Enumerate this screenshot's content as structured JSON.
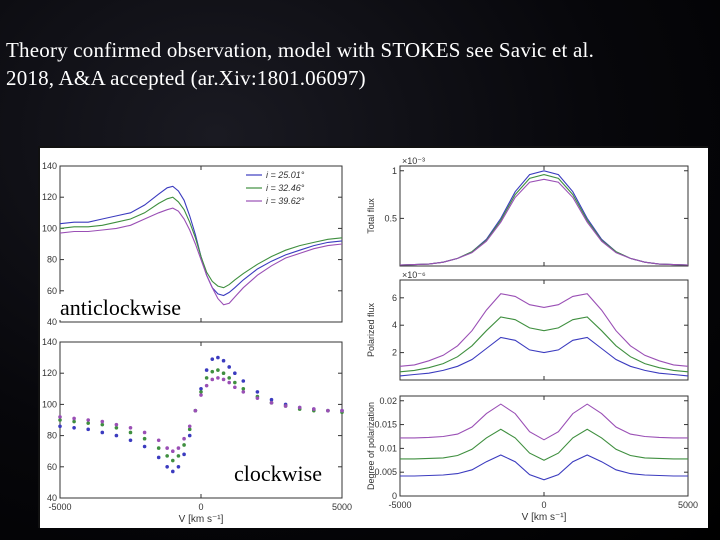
{
  "slide": {
    "title_line1": "Theory confirmed  observation, model with STOKES see Savic et al.",
    "title_line2": "2018, A&A accepted (ar.Xiv:1801.06097)"
  },
  "overlays": {
    "anticlockwise": "anticlockwise",
    "clockwise": "clockwise"
  },
  "colors": {
    "series_1": "#3b3bbf",
    "series_2": "#3f8f3f",
    "series_3": "#9a4fb5",
    "axis": "#333333"
  },
  "chart_data": [
    {
      "id": "angle-anticlockwise",
      "type": "line",
      "x": [
        -5000,
        -4500,
        -4000,
        -3500,
        -3000,
        -2500,
        -2000,
        -1500,
        -1200,
        -1000,
        -800,
        -600,
        -400,
        -200,
        0,
        200,
        400,
        600,
        800,
        1000,
        1200,
        1500,
        2000,
        2500,
        3000,
        3500,
        4000,
        4500,
        5000
      ],
      "series": [
        {
          "name": "i = 25.01°",
          "values": [
            103,
            104,
            104,
            106,
            108,
            110,
            115,
            122,
            126,
            127,
            124,
            118,
            108,
            96,
            82,
            70,
            62,
            58,
            57,
            59,
            62,
            67,
            74,
            79,
            83,
            86,
            89,
            91,
            92
          ]
        },
        {
          "name": "i = 32.46°",
          "values": [
            100,
            101,
            101,
            102,
            104,
            106,
            110,
            116,
            119,
            120,
            117,
            112,
            104,
            94,
            82,
            72,
            66,
            63,
            62,
            64,
            67,
            71,
            77,
            82,
            86,
            89,
            91,
            93,
            94
          ]
        },
        {
          "name": "i = 39.62°",
          "values": [
            97,
            98,
            98,
            99,
            100,
            102,
            106,
            110,
            112,
            113,
            111,
            106,
            99,
            90,
            80,
            70,
            62,
            55,
            51,
            52,
            56,
            62,
            70,
            76,
            81,
            84,
            87,
            89,
            90
          ]
        }
      ],
      "xlim": [
        -5000,
        5000
      ],
      "ylim": [
        40,
        140
      ],
      "yticks": [
        "140",
        "120",
        "100",
        "80",
        "60",
        "40"
      ],
      "legend_position": "top-right"
    },
    {
      "id": "angle-clockwise",
      "type": "scatter",
      "x": [
        -5000,
        -4500,
        -4000,
        -3500,
        -3000,
        -2500,
        -2000,
        -1500,
        -1200,
        -1000,
        -800,
        -600,
        -400,
        -200,
        0,
        200,
        400,
        600,
        800,
        1000,
        1200,
        1500,
        2000,
        2500,
        3000,
        3500,
        4000,
        4500,
        5000
      ],
      "series": [
        {
          "name": "i = 25.01°",
          "values": [
            86,
            85,
            84,
            82,
            80,
            77,
            73,
            66,
            60,
            57,
            60,
            68,
            80,
            96,
            110,
            122,
            129,
            130,
            128,
            124,
            120,
            115,
            108,
            103,
            100,
            98,
            97,
            96,
            96
          ]
        },
        {
          "name": "i = 32.46°",
          "values": [
            90,
            89,
            88,
            87,
            85,
            82,
            78,
            72,
            67,
            64,
            67,
            74,
            84,
            96,
            108,
            117,
            121,
            122,
            120,
            117,
            114,
            110,
            105,
            101,
            99,
            97,
            96,
            96,
            95
          ]
        },
        {
          "name": "i = 39.62°",
          "values": [
            92,
            91,
            90,
            89,
            87,
            85,
            82,
            77,
            72,
            70,
            72,
            78,
            86,
            96,
            106,
            112,
            116,
            117,
            116,
            114,
            111,
            108,
            104,
            101,
            99,
            98,
            97,
            96,
            96
          ]
        }
      ],
      "xlim": [
        -5000,
        5000
      ],
      "ylim": [
        40,
        140
      ],
      "xticks": [
        "-5000",
        "0",
        "5000"
      ],
      "yticks": [
        "140",
        "120",
        "100",
        "80",
        "60",
        "40"
      ],
      "xlabel": "V [km s⁻¹]"
    },
    {
      "id": "total-flux",
      "type": "line",
      "x": [
        -5000,
        -4500,
        -4000,
        -3500,
        -3000,
        -2500,
        -2000,
        -1500,
        -1000,
        -500,
        0,
        500,
        1000,
        1500,
        2000,
        2500,
        3000,
        3500,
        4000,
        4500,
        5000
      ],
      "series": [
        {
          "name": "i = 25.01°",
          "values": [
            0.01,
            0.015,
            0.02,
            0.04,
            0.08,
            0.15,
            0.28,
            0.5,
            0.78,
            0.96,
            1.0,
            0.96,
            0.78,
            0.5,
            0.28,
            0.15,
            0.08,
            0.04,
            0.02,
            0.015,
            0.01
          ]
        },
        {
          "name": "i = 32.46°",
          "values": [
            0.01,
            0.015,
            0.02,
            0.04,
            0.08,
            0.15,
            0.27,
            0.48,
            0.75,
            0.92,
            0.96,
            0.92,
            0.75,
            0.48,
            0.27,
            0.15,
            0.08,
            0.04,
            0.02,
            0.015,
            0.01
          ]
        },
        {
          "name": "i = 39.62°",
          "values": [
            0.01,
            0.015,
            0.02,
            0.04,
            0.08,
            0.14,
            0.26,
            0.46,
            0.72,
            0.88,
            0.91,
            0.88,
            0.72,
            0.46,
            0.26,
            0.14,
            0.08,
            0.04,
            0.02,
            0.015,
            0.01
          ]
        }
      ],
      "xlim": [
        -5000,
        5000
      ],
      "ylim": [
        0,
        1.05
      ],
      "yticks": [
        "1",
        "0.5"
      ],
      "ylabel": "Total flux",
      "scale_note": "×10⁻³"
    },
    {
      "id": "polarized-flux",
      "type": "line",
      "x": [
        -5000,
        -4500,
        -4000,
        -3500,
        -3000,
        -2500,
        -2000,
        -1500,
        -1000,
        -500,
        0,
        500,
        1000,
        1500,
        2000,
        2500,
        3000,
        3500,
        4000,
        4500,
        5000
      ],
      "series": [
        {
          "name": "i = 25.01°",
          "values": [
            0.3,
            0.4,
            0.5,
            0.7,
            1.0,
            1.5,
            2.3,
            3.1,
            2.9,
            2.2,
            2.0,
            2.2,
            2.9,
            3.1,
            2.3,
            1.5,
            1.0,
            0.7,
            0.5,
            0.4,
            0.3
          ]
        },
        {
          "name": "i = 32.46°",
          "values": [
            0.6,
            0.7,
            0.9,
            1.2,
            1.7,
            2.5,
            3.6,
            4.6,
            4.4,
            3.8,
            3.6,
            3.8,
            4.4,
            4.6,
            3.6,
            2.5,
            1.7,
            1.2,
            0.9,
            0.7,
            0.6
          ]
        },
        {
          "name": "i = 39.62°",
          "values": [
            1.0,
            1.1,
            1.4,
            1.8,
            2.5,
            3.6,
            5.1,
            6.3,
            6.1,
            5.5,
            5.3,
            5.5,
            6.1,
            6.3,
            5.1,
            3.6,
            2.5,
            1.8,
            1.4,
            1.1,
            1.0
          ]
        }
      ],
      "xlim": [
        -5000,
        5000
      ],
      "ylim": [
        0,
        7.3
      ],
      "yticks": [
        "6",
        "4",
        "2"
      ],
      "ylabel": "Polarized flux",
      "scale_note": "×10⁻⁶"
    },
    {
      "id": "degree-polarization",
      "type": "line",
      "x": [
        -5000,
        -4500,
        -4000,
        -3500,
        -3000,
        -2500,
        -2000,
        -1500,
        -1000,
        -500,
        0,
        500,
        1000,
        1500,
        2000,
        2500,
        3000,
        3500,
        4000,
        4500,
        5000
      ],
      "series": [
        {
          "name": "i = 25.01°",
          "values": [
            0.0042,
            0.0042,
            0.0043,
            0.0044,
            0.0047,
            0.0055,
            0.0072,
            0.0086,
            0.0072,
            0.0045,
            0.0034,
            0.0045,
            0.0072,
            0.0086,
            0.0072,
            0.0055,
            0.0047,
            0.0044,
            0.0043,
            0.0042,
            0.0042
          ]
        },
        {
          "name": "i = 32.46°",
          "values": [
            0.0078,
            0.0078,
            0.0079,
            0.008,
            0.0085,
            0.0098,
            0.0122,
            0.014,
            0.0122,
            0.009,
            0.0075,
            0.009,
            0.0122,
            0.014,
            0.0122,
            0.0098,
            0.0085,
            0.008,
            0.0079,
            0.0078,
            0.0078
          ]
        },
        {
          "name": "i = 39.62°",
          "values": [
            0.0122,
            0.0122,
            0.0123,
            0.0125,
            0.013,
            0.0145,
            0.0173,
            0.0193,
            0.0173,
            0.0135,
            0.0118,
            0.0135,
            0.0173,
            0.0193,
            0.0173,
            0.0145,
            0.013,
            0.0125,
            0.0123,
            0.0122,
            0.0122
          ]
        }
      ],
      "xlim": [
        -5000,
        5000
      ],
      "ylim": [
        0,
        0.021
      ],
      "xticks": [
        "-5000",
        "0",
        "5000"
      ],
      "yticks": [
        "0.02",
        "0.015",
        "0.01",
        "0.005",
        "0"
      ],
      "xlabel": "V [km s⁻¹]",
      "ylabel": "Degree of polarization"
    }
  ]
}
